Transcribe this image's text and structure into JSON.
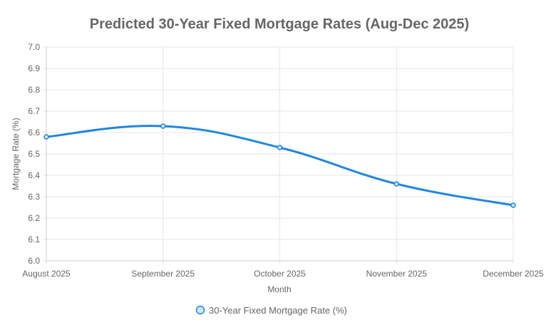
{
  "chart_data": {
    "type": "line",
    "title": "Predicted 30-Year Fixed Mortgage Rates (Aug-Dec 2025)",
    "xlabel": "Month",
    "ylabel": "Mortgage Rate (%)",
    "categories": [
      "August 2025",
      "September 2025",
      "October 2025",
      "November 2025",
      "December 2025"
    ],
    "series": [
      {
        "name": "30-Year Fixed Mortgage Rate (%)",
        "values": [
          6.58,
          6.63,
          6.53,
          6.36,
          6.26
        ],
        "color": "#2186e0",
        "fill_color": "#cfe5f8"
      }
    ],
    "ylim": [
      6.0,
      7.0
    ],
    "yticks": [
      "7.0",
      "6.9",
      "6.8",
      "6.7",
      "6.6",
      "6.5",
      "6.4",
      "6.3",
      "6.2",
      "6.1",
      "6.0"
    ],
    "grid": true,
    "legend_position": "bottom",
    "colors": {
      "title": "#666666",
      "axis_text": "#666666",
      "grid": "#e6e6e6"
    }
  }
}
